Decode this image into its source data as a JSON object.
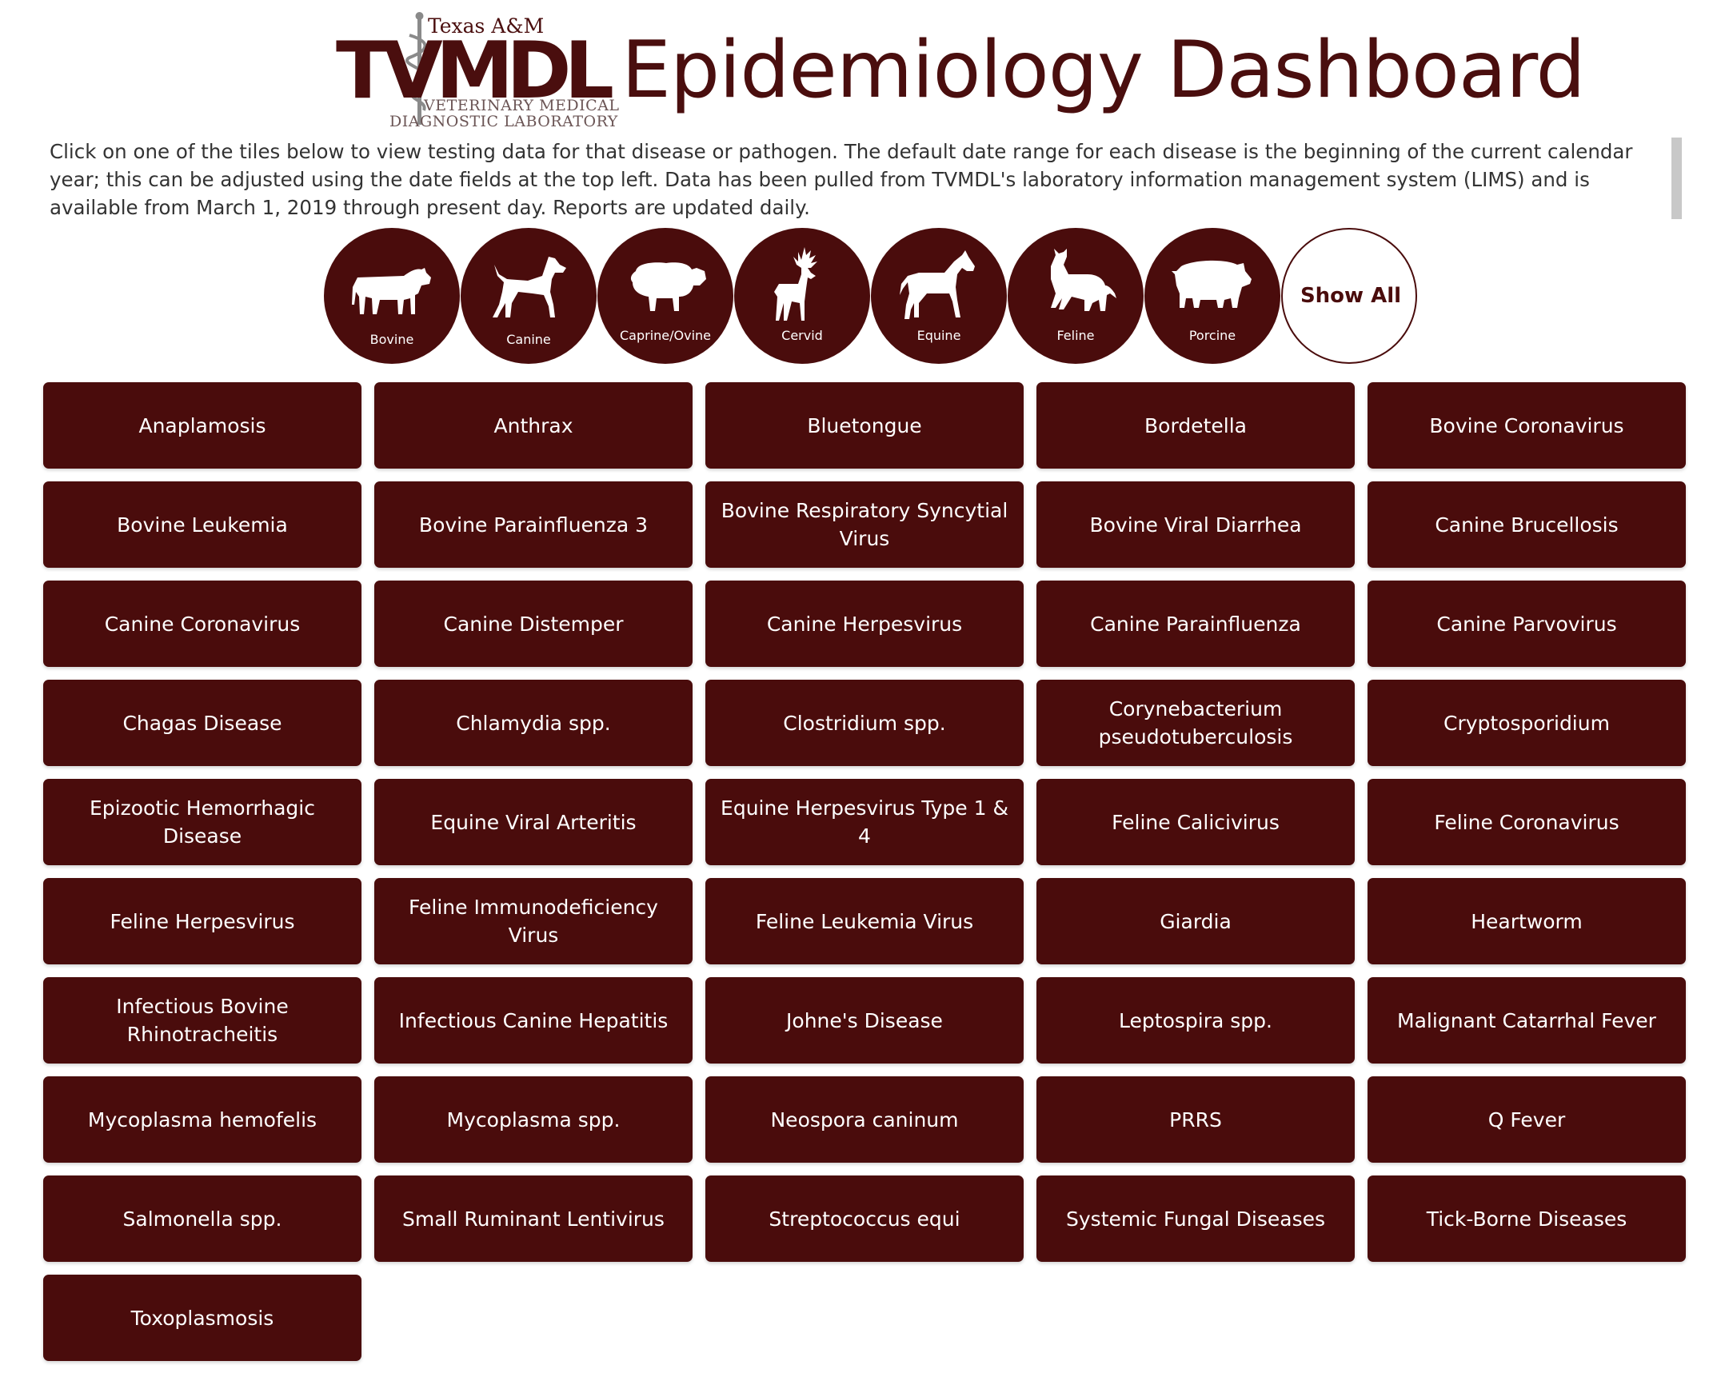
{
  "header": {
    "logo": {
      "top": "Texas A&M",
      "main": "TVMDL",
      "line1": "VETERINARY MEDICAL",
      "line2": "DIAGNOSTIC LABORATORY"
    },
    "title": "Epidemiology Dashboard"
  },
  "intro": "Click on one of the tiles below to view testing data for that disease or pathogen. The default date range for each disease is the beginning of the current calendar year; this can be adjusted using the date fields at the top left. Data has been pulled from TVMDL's laboratory information management system (LIMS) and is available from March 1, 2019 through present day. Reports are updated daily.",
  "species": [
    {
      "label": "Bovine",
      "icon": "cow-icon"
    },
    {
      "label": "Canine",
      "icon": "dog-icon"
    },
    {
      "label": "Caprine/Ovine",
      "icon": "sheep-icon"
    },
    {
      "label": "Cervid",
      "icon": "deer-icon"
    },
    {
      "label": "Equine",
      "icon": "horse-icon"
    },
    {
      "label": "Feline",
      "icon": "cat-icon"
    },
    {
      "label": "Porcine",
      "icon": "pig-icon"
    }
  ],
  "show_all": "Show All",
  "tiles": [
    "Anaplamosis",
    "Anthrax",
    "Bluetongue",
    "Bordetella",
    "Bovine Coronavirus",
    "Bovine Leukemia",
    "Bovine Parainfluenza 3",
    "Bovine Respiratory Syncytial Virus",
    "Bovine Viral Diarrhea",
    "Canine Brucellosis",
    "Canine Coronavirus",
    "Canine Distemper",
    "Canine Herpesvirus",
    "Canine Parainfluenza",
    "Canine Parvovirus",
    "Chagas Disease",
    "Chlamydia spp.",
    "Clostridium spp.",
    "Corynebacterium pseudotuberculosis",
    "Cryptosporidium",
    "Epizootic Hemorrhagic Disease",
    "Equine Viral Arteritis",
    "Equine Herpesvirus Type 1 & 4",
    "Feline Calicivirus",
    "Feline Coronavirus",
    "Feline Herpesvirus",
    "Feline Immunodeficiency Virus",
    "Feline Leukemia Virus",
    "Giardia",
    "Heartworm",
    "Infectious Bovine Rhinotracheitis",
    "Infectious Canine Hepatitis",
    "Johne's Disease",
    "Leptospira spp.",
    "Malignant Catarrhal Fever",
    "Mycoplasma hemofelis",
    "Mycoplasma spp.",
    "Neospora caninum",
    "PRRS",
    "Q Fever",
    "Salmonella spp.",
    "Small Ruminant Lentivirus",
    "Streptococcus equi",
    "Systemic Fungal Diseases",
    "Tick-Borne Diseases",
    "Toxoplasmosis"
  ],
  "colors": {
    "maroon": "#4a0c0c",
    "title": "#4a0e0e",
    "white": "#ffffff"
  }
}
